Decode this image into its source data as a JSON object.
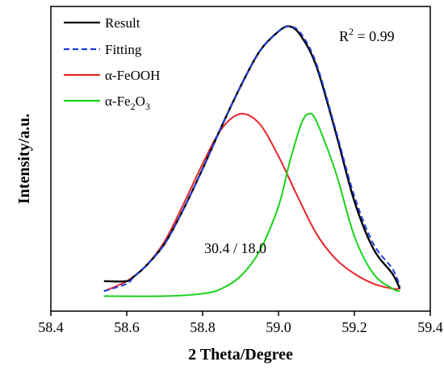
{
  "chart_data": {
    "type": "line",
    "xlabel": "2 Theta/Degree",
    "ylabel": "Intensity/a.u.",
    "xlim": [
      58.4,
      59.4
    ],
    "ylim": [
      -0.12,
      1.1
    ],
    "xticks": [
      "58.4",
      "58.6",
      "58.8",
      "59.0",
      "59.2",
      "59.4"
    ],
    "y_tick_labels_shown": false,
    "grid": false,
    "legend_position": "top-left",
    "annotations": {
      "r2_base": "R",
      "r2_sup": "2",
      "r2_value": " = 0.99",
      "ratio": "30.4 / 18.0"
    },
    "series": [
      {
        "name": "Result",
        "style": "solid",
        "color": "#000000",
        "x": [
          58.54,
          58.6,
          58.62,
          58.65,
          58.7,
          58.75,
          58.8,
          58.85,
          58.9,
          58.95,
          59.0,
          59.03,
          59.06,
          59.1,
          59.15,
          59.2,
          59.25,
          59.3,
          59.32
        ],
        "y": [
          0.0,
          0.0,
          0.02,
          0.06,
          0.15,
          0.29,
          0.45,
          0.62,
          0.78,
          0.92,
          1.0,
          1.02,
          0.98,
          0.86,
          0.6,
          0.32,
          0.13,
          0.03,
          -0.03
        ]
      },
      {
        "name": "Fitting",
        "style": "dashed",
        "color": "#1f3cdc",
        "x": [
          58.54,
          58.6,
          58.62,
          58.65,
          58.7,
          58.75,
          58.8,
          58.85,
          58.9,
          58.95,
          59.0,
          59.03,
          59.06,
          59.1,
          59.15,
          59.2,
          59.25,
          59.3,
          59.32
        ],
        "y": [
          -0.04,
          -0.01,
          0.02,
          0.06,
          0.15,
          0.29,
          0.45,
          0.62,
          0.78,
          0.92,
          1.0,
          1.02,
          0.99,
          0.87,
          0.61,
          0.34,
          0.15,
          0.05,
          -0.02
        ]
      },
      {
        "name": "α-FeOOH",
        "style": "solid",
        "color": "#e8262a",
        "x": [
          58.54,
          58.6,
          58.65,
          58.7,
          58.75,
          58.8,
          58.85,
          58.9,
          58.95,
          59.0,
          59.05,
          59.1,
          59.15,
          59.2,
          59.25,
          59.3,
          59.32
        ],
        "y": [
          -0.04,
          0.0,
          0.06,
          0.16,
          0.31,
          0.47,
          0.61,
          0.67,
          0.63,
          0.5,
          0.34,
          0.19,
          0.09,
          0.03,
          -0.01,
          -0.03,
          -0.03
        ]
      },
      {
        "name": "α-Fe₂O₃",
        "legend_base": "α-Fe",
        "legend_sub1": "2",
        "legend_mid": "O",
        "legend_sub2": "3",
        "style": "solid",
        "color": "#18d41a",
        "x": [
          58.54,
          58.7,
          58.8,
          58.85,
          58.9,
          58.95,
          59.0,
          59.03,
          59.06,
          59.08,
          59.1,
          59.15,
          59.2,
          59.25,
          59.3,
          59.32
        ],
        "y": [
          -0.06,
          -0.06,
          -0.05,
          -0.03,
          0.02,
          0.12,
          0.3,
          0.48,
          0.63,
          0.67,
          0.64,
          0.44,
          0.18,
          0.03,
          -0.03,
          -0.04
        ]
      }
    ]
  }
}
